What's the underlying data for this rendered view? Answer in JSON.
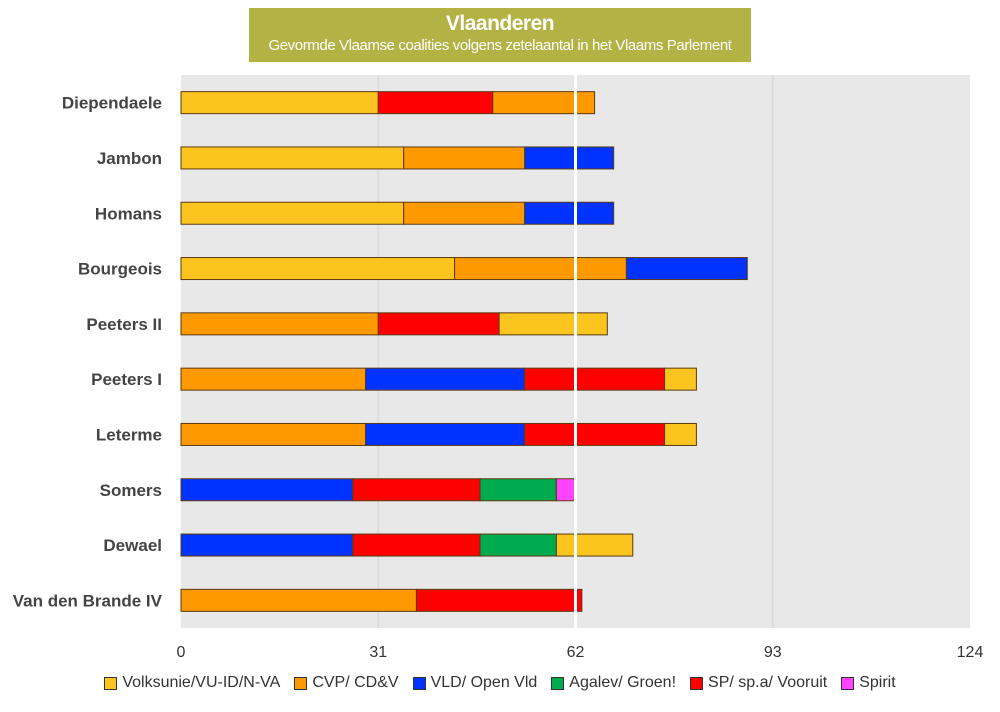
{
  "chart_data": {
    "type": "bar",
    "orientation": "horizontal",
    "stacked": true,
    "title": "Vlaanderen",
    "subtitle": "Gevormde Vlaamse coalities volgens zetelaantal in het Vlaams Parlement",
    "xlim": [
      0,
      124
    ],
    "xticks": [
      "0",
      "31",
      "62",
      "93",
      "124"
    ],
    "grid": true,
    "legend_position": "bottom",
    "parties": [
      {
        "name": "Volksunie/VU-ID/N-VA",
        "color": "#fcc41f"
      },
      {
        "name": "CVP/ CD&V",
        "color": "#ff9900"
      },
      {
        "name": "VLD/ Open Vld",
        "color": "#0033ff"
      },
      {
        "name": "Agalev/ Groen!",
        "color": "#00aa4f"
      },
      {
        "name": "SP/ sp.a/ Vooruit",
        "color": "#ff0000"
      },
      {
        "name": "Spirit",
        "color": "#ff44ff"
      }
    ],
    "categories": [
      {
        "label": "Diependaele",
        "segments": [
          {
            "party": 0,
            "value": 31
          },
          {
            "party": 4,
            "value": 18
          },
          {
            "party": 1,
            "value": 16
          }
        ]
      },
      {
        "label": "Jambon",
        "segments": [
          {
            "party": 0,
            "value": 35
          },
          {
            "party": 1,
            "value": 19
          },
          {
            "party": 2,
            "value": 14
          }
        ]
      },
      {
        "label": "Homans",
        "segments": [
          {
            "party": 0,
            "value": 35
          },
          {
            "party": 1,
            "value": 19
          },
          {
            "party": 2,
            "value": 14
          }
        ]
      },
      {
        "label": "Bourgeois",
        "segments": [
          {
            "party": 0,
            "value": 43
          },
          {
            "party": 1,
            "value": 27
          },
          {
            "party": 2,
            "value": 19
          }
        ]
      },
      {
        "label": "Peeters II",
        "segments": [
          {
            "party": 1,
            "value": 31
          },
          {
            "party": 4,
            "value": 19
          },
          {
            "party": 0,
            "value": 17
          }
        ]
      },
      {
        "label": "Peeters I",
        "segments": [
          {
            "party": 1,
            "value": 29
          },
          {
            "party": 2,
            "value": 25
          },
          {
            "party": 4,
            "value": 22
          },
          {
            "party": 0,
            "value": 5
          }
        ]
      },
      {
        "label": "Leterme",
        "segments": [
          {
            "party": 1,
            "value": 29
          },
          {
            "party": 2,
            "value": 25
          },
          {
            "party": 4,
            "value": 22
          },
          {
            "party": 0,
            "value": 5
          }
        ]
      },
      {
        "label": "Somers",
        "segments": [
          {
            "party": 2,
            "value": 27
          },
          {
            "party": 4,
            "value": 20
          },
          {
            "party": 3,
            "value": 12
          },
          {
            "party": 5,
            "value": 3
          }
        ]
      },
      {
        "label": "Dewael",
        "segments": [
          {
            "party": 2,
            "value": 27
          },
          {
            "party": 4,
            "value": 20
          },
          {
            "party": 3,
            "value": 12
          },
          {
            "party": 0,
            "value": 12
          }
        ]
      },
      {
        "label": "Van den Brande IV",
        "segments": [
          {
            "party": 1,
            "value": 37
          },
          {
            "party": 4,
            "value": 26
          }
        ]
      }
    ],
    "majority_line": 62
  }
}
